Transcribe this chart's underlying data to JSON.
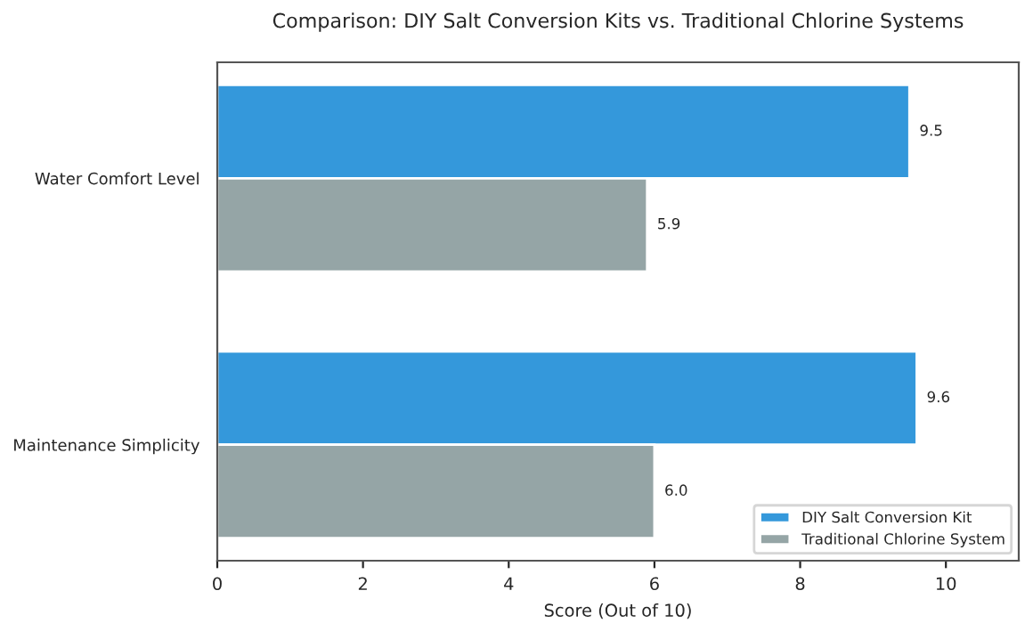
{
  "chart_data": {
    "type": "bar",
    "orientation": "horizontal",
    "title": "Comparison: DIY Salt Conversion Kits vs. Traditional Chlorine Systems",
    "xlabel": "Score (Out of 10)",
    "categories": [
      "Water Comfort Level",
      "Maintenance Simplicity"
    ],
    "series": [
      {
        "name": "DIY Salt Conversion Kit",
        "color": "#3498db",
        "values": [
          9.5,
          9.6
        ],
        "value_labels": [
          "9.5",
          "9.6"
        ]
      },
      {
        "name": "Traditional Chlorine System",
        "color": "#95a5a6",
        "values": [
          5.9,
          6.0
        ],
        "value_labels": [
          "5.9",
          "6.0"
        ]
      }
    ],
    "xlim": [
      0,
      11
    ],
    "xticks": [
      0,
      2,
      4,
      6,
      8,
      10
    ],
    "legend": "bottom right",
    "grid": false
  }
}
